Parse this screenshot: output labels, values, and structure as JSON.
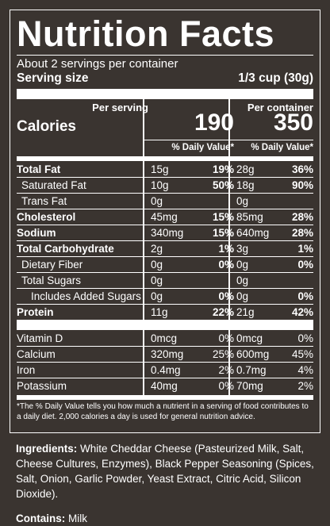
{
  "title": "Nutrition Facts",
  "servings": "About 2 servings per container",
  "serving_size_label": "Serving size",
  "serving_size_value": "1/3 cup (30g)",
  "col1_head": "Per serving",
  "col2_head": "Per container",
  "calories_label": "Calories",
  "cal1": "190",
  "cal2": "350",
  "dv_head": "% Daily Value*",
  "nutrients": [
    {
      "name": "Total Fat",
      "bold": true,
      "indent": 0,
      "a1": "15g",
      "p1": "19%",
      "a2": "28g",
      "p2": "36%",
      "pbold": true
    },
    {
      "name": "Saturated Fat",
      "bold": false,
      "indent": 1,
      "a1": "10g",
      "p1": "50%",
      "a2": "18g",
      "p2": "90%",
      "pbold": true
    },
    {
      "name": "Trans Fat",
      "bold": false,
      "indent": 1,
      "a1": "0g",
      "p1": "",
      "a2": "0g",
      "p2": "",
      "pbold": true
    },
    {
      "name": "Cholesterol",
      "bold": true,
      "indent": 0,
      "a1": "45mg",
      "p1": "15%",
      "a2": "85mg",
      "p2": "28%",
      "pbold": true
    },
    {
      "name": "Sodium",
      "bold": true,
      "indent": 0,
      "a1": "340mg",
      "p1": "15%",
      "a2": "640mg",
      "p2": "28%",
      "pbold": true
    },
    {
      "name": "Total Carbohydrate",
      "bold": true,
      "indent": 0,
      "a1": "2g",
      "p1": "1%",
      "a2": "3g",
      "p2": "1%",
      "pbold": true
    },
    {
      "name": "Dietary Fiber",
      "bold": false,
      "indent": 1,
      "a1": "0g",
      "p1": "0%",
      "a2": "0g",
      "p2": "0%",
      "pbold": true
    },
    {
      "name": "Total Sugars",
      "bold": false,
      "indent": 1,
      "a1": "0g",
      "p1": "",
      "a2": "0g",
      "p2": "",
      "pbold": true
    },
    {
      "name": "Includes Added Sugars",
      "bold": false,
      "indent": 2,
      "a1": "0g",
      "p1": "0%",
      "a2": "0g",
      "p2": "0%",
      "pbold": true
    },
    {
      "name": "Protein",
      "bold": true,
      "indent": 0,
      "a1": "11g",
      "p1": "22%",
      "a2": "21g",
      "p2": "42%",
      "pbold": true
    }
  ],
  "vitamins": [
    {
      "name": "Vitamin D",
      "a1": "0mcg",
      "p1": "0%",
      "a2": "0mcg",
      "p2": "0%"
    },
    {
      "name": "Calcium",
      "a1": "320mg",
      "p1": "25%",
      "a2": "600mg",
      "p2": "45%"
    },
    {
      "name": "Iron",
      "a1": "0.4mg",
      "p1": "2%",
      "a2": "0.7mg",
      "p2": "4%"
    },
    {
      "name": "Potassium",
      "a1": "40mg",
      "p1": "0%",
      "a2": "70mg",
      "p2": "2%"
    }
  ],
  "footnote": "*The % Daily Value tells you how much a nutrient in a serving of food contributes to a daily diet. 2,000 calories a day is used for general nutrition advice.",
  "ingredients_label": "Ingredients:",
  "ingredients_text": " White Cheddar Cheese (Pasteurized Milk, Salt, Cheese Cultures, Enzymes), Black Pepper Seasoning (Spices, Salt, Onion, Garlic Powder, Yeast Extract, Citric Acid, Silicon Dioxide).",
  "contains_label": "Contains:",
  "contains_text": " Milk"
}
